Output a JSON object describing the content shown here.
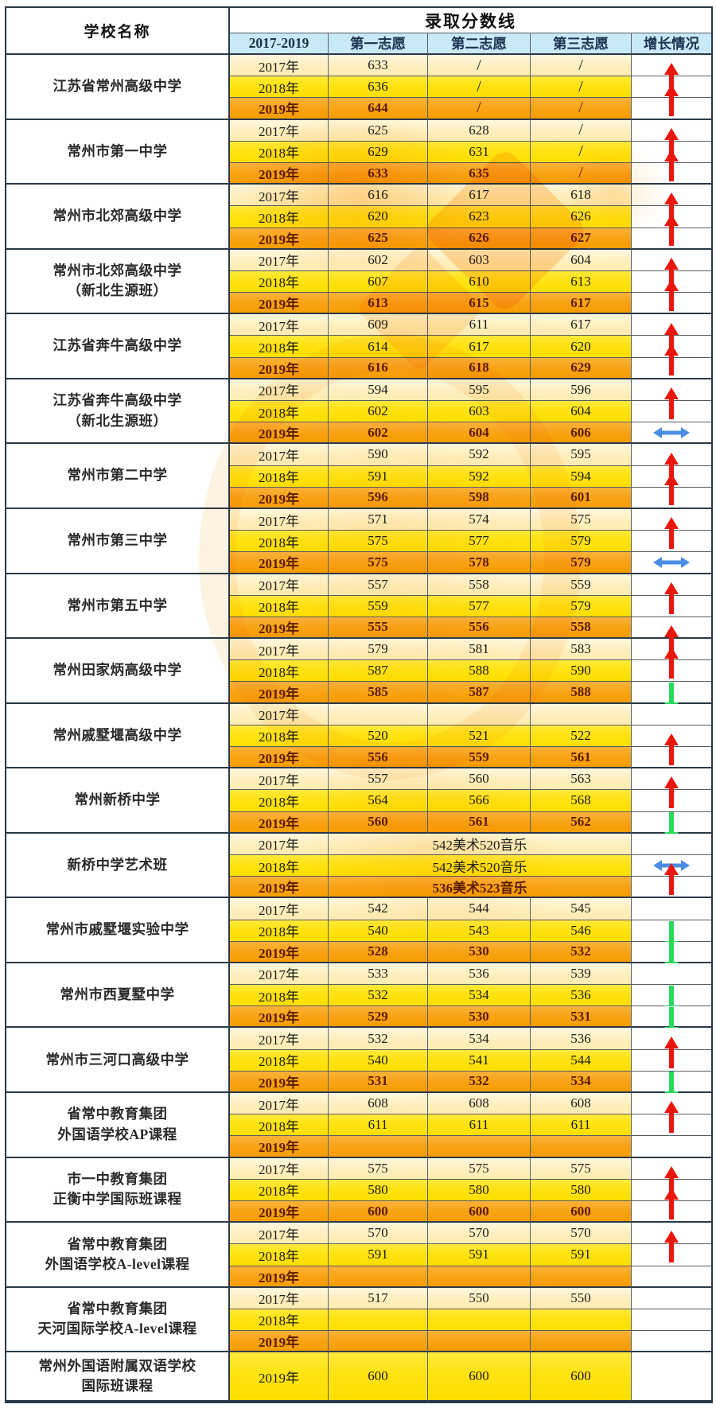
{
  "header": {
    "name_column_title": "学校名称",
    "scores_title": "录取分数线",
    "sub": [
      "2017-2019",
      "第一志愿",
      "第二志愿",
      "第三志愿",
      "增长情况"
    ]
  },
  "colors": {
    "up_arrow": "#e9160c",
    "down_arrow": "#29d95b",
    "flat_arrow": "#4b8de4",
    "header_bg": "#c8e9f7",
    "row_2017": "#ffefbd",
    "row_2018": "#ffe312",
    "row_2019": "#f8a414",
    "row_2019_text": "#5c1c04",
    "watermark": "#f7971e"
  },
  "chart_data": {
    "type": "table",
    "columns": [
      "学校名称",
      "2017-2019",
      "第一志愿",
      "第二志愿",
      "第三志愿",
      "增长情况"
    ],
    "schools": [
      {
        "name": [
          "江苏省常州高级中学"
        ],
        "rows": [
          {
            "year": "2017年",
            "tone": "cream",
            "values": [
              "633",
              "/",
              "/"
            ],
            "arrow": ""
          },
          {
            "year": "2018年",
            "tone": "yellow",
            "values": [
              "636",
              "/",
              "/"
            ],
            "arrow": "up"
          },
          {
            "year": "2019年",
            "tone": "orange",
            "values": [
              "644",
              "/",
              "/"
            ],
            "arrow": "up"
          }
        ]
      },
      {
        "name": [
          "常州市第一中学"
        ],
        "rows": [
          {
            "year": "2017年",
            "tone": "cream",
            "values": [
              "625",
              "628",
              "/"
            ],
            "arrow": ""
          },
          {
            "year": "2018年",
            "tone": "yellow",
            "values": [
              "629",
              "631",
              "/"
            ],
            "arrow": "up"
          },
          {
            "year": "2019年",
            "tone": "orange",
            "values": [
              "633",
              "635",
              "/"
            ],
            "arrow": "up"
          }
        ]
      },
      {
        "name": [
          "常州市北郊高级中学"
        ],
        "rows": [
          {
            "year": "2017年",
            "tone": "cream",
            "values": [
              "616",
              "617",
              "618"
            ],
            "arrow": ""
          },
          {
            "year": "2018年",
            "tone": "yellow",
            "values": [
              "620",
              "623",
              "626"
            ],
            "arrow": "up"
          },
          {
            "year": "2019年",
            "tone": "orange",
            "values": [
              "625",
              "626",
              "627"
            ],
            "arrow": "up"
          }
        ]
      },
      {
        "name": [
          "常州市北郊高级中学",
          "（新北生源班）"
        ],
        "rows": [
          {
            "year": "2017年",
            "tone": "cream",
            "values": [
              "602",
              "603",
              "604"
            ],
            "arrow": ""
          },
          {
            "year": "2018年",
            "tone": "yellow",
            "values": [
              "607",
              "610",
              "613"
            ],
            "arrow": "up"
          },
          {
            "year": "2019年",
            "tone": "orange",
            "values": [
              "613",
              "615",
              "617"
            ],
            "arrow": "up"
          }
        ]
      },
      {
        "name": [
          "江苏省奔牛高级中学"
        ],
        "rows": [
          {
            "year": "2017年",
            "tone": "cream",
            "values": [
              "609",
              "611",
              "617"
            ],
            "arrow": ""
          },
          {
            "year": "2018年",
            "tone": "yellow",
            "values": [
              "614",
              "617",
              "620"
            ],
            "arrow": "up"
          },
          {
            "year": "2019年",
            "tone": "orange",
            "values": [
              "616",
              "618",
              "629"
            ],
            "arrow": "up"
          }
        ]
      },
      {
        "name": [
          "江苏省奔牛高级中学",
          "（新北生源班）"
        ],
        "rows": [
          {
            "year": "2017年",
            "tone": "cream",
            "values": [
              "594",
              "595",
              "596"
            ],
            "arrow": ""
          },
          {
            "year": "2018年",
            "tone": "yellow",
            "values": [
              "602",
              "603",
              "604"
            ],
            "arrow": "up"
          },
          {
            "year": "2019年",
            "tone": "orange",
            "values": [
              "602",
              "604",
              "606"
            ],
            "arrow": "flat"
          }
        ]
      },
      {
        "name": [
          "常州市第二中学"
        ],
        "rows": [
          {
            "year": "2017年",
            "tone": "cream",
            "values": [
              "590",
              "592",
              "595"
            ],
            "arrow": ""
          },
          {
            "year": "2018年",
            "tone": "yellow",
            "values": [
              "591",
              "592",
              "594"
            ],
            "arrow": "up"
          },
          {
            "year": "2019年",
            "tone": "orange",
            "values": [
              "596",
              "598",
              "601"
            ],
            "arrow": "up"
          }
        ]
      },
      {
        "name": [
          "常州市第三中学"
        ],
        "rows": [
          {
            "year": "2017年",
            "tone": "cream",
            "values": [
              "571",
              "574",
              "575"
            ],
            "arrow": ""
          },
          {
            "year": "2018年",
            "tone": "yellow",
            "values": [
              "575",
              "577",
              "579"
            ],
            "arrow": "up"
          },
          {
            "year": "2019年",
            "tone": "orange",
            "values": [
              "575",
              "578",
              "579"
            ],
            "arrow": "flat"
          }
        ]
      },
      {
        "name": [
          "常州市第五中学"
        ],
        "rows": [
          {
            "year": "2017年",
            "tone": "cream",
            "values": [
              "557",
              "558",
              "559"
            ],
            "arrow": ""
          },
          {
            "year": "2018年",
            "tone": "yellow",
            "values": [
              "559",
              "577",
              "579"
            ],
            "arrow": "up"
          },
          {
            "year": "2019年",
            "tone": "orange",
            "values": [
              "555",
              "556",
              "558"
            ],
            "arrow": ""
          }
        ]
      },
      {
        "name": [
          "常州田家炳高级中学"
        ],
        "rows": [
          {
            "year": "2017年",
            "tone": "cream",
            "values": [
              "579",
              "581",
              "583"
            ],
            "arrow": "up"
          },
          {
            "year": "2018年",
            "tone": "yellow",
            "values": [
              "587",
              "588",
              "590"
            ],
            "arrow": "up"
          },
          {
            "year": "2019年",
            "tone": "orange",
            "values": [
              "585",
              "587",
              "588"
            ],
            "arrow": "down"
          }
        ]
      },
      {
        "name": [
          "常州戚墅堰高级中学"
        ],
        "rows": [
          {
            "year": "2017年",
            "tone": "cream",
            "values": [
              "",
              "",
              ""
            ],
            "arrow": ""
          },
          {
            "year": "2018年",
            "tone": "yellow",
            "values": [
              "520",
              "521",
              "522"
            ],
            "arrow": ""
          },
          {
            "year": "2019年",
            "tone": "orange",
            "values": [
              "556",
              "559",
              "561"
            ],
            "arrow": "up"
          }
        ]
      },
      {
        "name": [
          "常州新桥中学"
        ],
        "rows": [
          {
            "year": "2017年",
            "tone": "cream",
            "values": [
              "557",
              "560",
              "563"
            ],
            "arrow": ""
          },
          {
            "year": "2018年",
            "tone": "yellow",
            "values": [
              "564",
              "566",
              "568"
            ],
            "arrow": "up"
          },
          {
            "year": "2019年",
            "tone": "orange",
            "values": [
              "560",
              "561",
              "562"
            ],
            "arrow": "down"
          }
        ]
      },
      {
        "name": [
          "新桥中学艺术班"
        ],
        "rows": [
          {
            "year": "2017年",
            "tone": "cream",
            "merged": "542美术520音乐",
            "arrow": ""
          },
          {
            "year": "2018年",
            "tone": "yellow",
            "merged": "542美术520音乐",
            "arrow": "flat"
          },
          {
            "year": "2019年",
            "tone": "orange",
            "merged": "536美术523音乐",
            "arrow": "up"
          }
        ]
      },
      {
        "name": [
          "常州市戚墅堰实验中学"
        ],
        "rows": [
          {
            "year": "2017年",
            "tone": "cream",
            "values": [
              "542",
              "544",
              "545"
            ],
            "arrow": ""
          },
          {
            "year": "2018年",
            "tone": "yellow",
            "values": [
              "540",
              "543",
              "546"
            ],
            "arrow": "down"
          },
          {
            "year": "2019年",
            "tone": "orange",
            "values": [
              "528",
              "530",
              "532"
            ],
            "arrow": "down"
          }
        ]
      },
      {
        "name": [
          "常州市西夏墅中学"
        ],
        "rows": [
          {
            "year": "2017年",
            "tone": "cream",
            "values": [
              "533",
              "536",
              "539"
            ],
            "arrow": ""
          },
          {
            "year": "2018年",
            "tone": "yellow",
            "values": [
              "532",
              "534",
              "536"
            ],
            "arrow": "down"
          },
          {
            "year": "2019年",
            "tone": "orange",
            "values": [
              "529",
              "530",
              "531"
            ],
            "arrow": "down"
          }
        ]
      },
      {
        "name": [
          "常州市三河口高级中学"
        ],
        "rows": [
          {
            "year": "2017年",
            "tone": "cream",
            "values": [
              "532",
              "534",
              "536"
            ],
            "arrow": ""
          },
          {
            "year": "2018年",
            "tone": "yellow",
            "values": [
              "540",
              "541",
              "544"
            ],
            "arrow": "up"
          },
          {
            "year": "2019年",
            "tone": "orange",
            "values": [
              "531",
              "532",
              "534"
            ],
            "arrow": "down"
          }
        ]
      },
      {
        "name": [
          "省常中教育集团",
          "外国语学校AP课程"
        ],
        "rows": [
          {
            "year": "2017年",
            "tone": "cream",
            "values": [
              "608",
              "608",
              "608"
            ],
            "arrow": ""
          },
          {
            "year": "2018年",
            "tone": "yellow",
            "values": [
              "611",
              "611",
              "611"
            ],
            "arrow": "up"
          },
          {
            "year": "2019年",
            "tone": "orange",
            "values": [
              "",
              "",
              ""
            ],
            "arrow": ""
          }
        ]
      },
      {
        "name": [
          "市一中教育集团",
          "正衡中学国际班课程"
        ],
        "rows": [
          {
            "year": "2017年",
            "tone": "cream",
            "values": [
              "575",
              "575",
              "575"
            ],
            "arrow": ""
          },
          {
            "year": "2018年",
            "tone": "yellow",
            "values": [
              "580",
              "580",
              "580"
            ],
            "arrow": "up"
          },
          {
            "year": "2019年",
            "tone": "orange",
            "values": [
              "600",
              "600",
              "600"
            ],
            "arrow": "up"
          }
        ]
      },
      {
        "name": [
          "省常中教育集团",
          "外国语学校A-level课程"
        ],
        "rows": [
          {
            "year": "2017年",
            "tone": "cream",
            "values": [
              "570",
              "570",
              "570"
            ],
            "arrow": ""
          },
          {
            "year": "2018年",
            "tone": "yellow",
            "values": [
              "591",
              "591",
              "591"
            ],
            "arrow": "up"
          },
          {
            "year": "2019年",
            "tone": "orange",
            "values": [
              "",
              "",
              ""
            ],
            "arrow": ""
          }
        ]
      },
      {
        "name": [
          "省常中教育集团",
          "天河国际学校A-level课程"
        ],
        "rows": [
          {
            "year": "2017年",
            "tone": "cream",
            "values": [
              "517",
              "550",
              "550"
            ],
            "arrow": ""
          },
          {
            "year": "2018年",
            "tone": "yellow",
            "values": [
              "",
              "",
              ""
            ],
            "arrow": ""
          },
          {
            "year": "2019年",
            "tone": "orange",
            "values": [
              "",
              "",
              ""
            ],
            "arrow": ""
          }
        ]
      },
      {
        "name": [
          "常州外国语附属双语学校",
          "国际班课程"
        ],
        "tall": true,
        "rows": [
          {
            "year": "2019年",
            "tone": "yellow",
            "values": [
              "600",
              "600",
              "600"
            ],
            "arrow": ""
          }
        ]
      }
    ]
  }
}
